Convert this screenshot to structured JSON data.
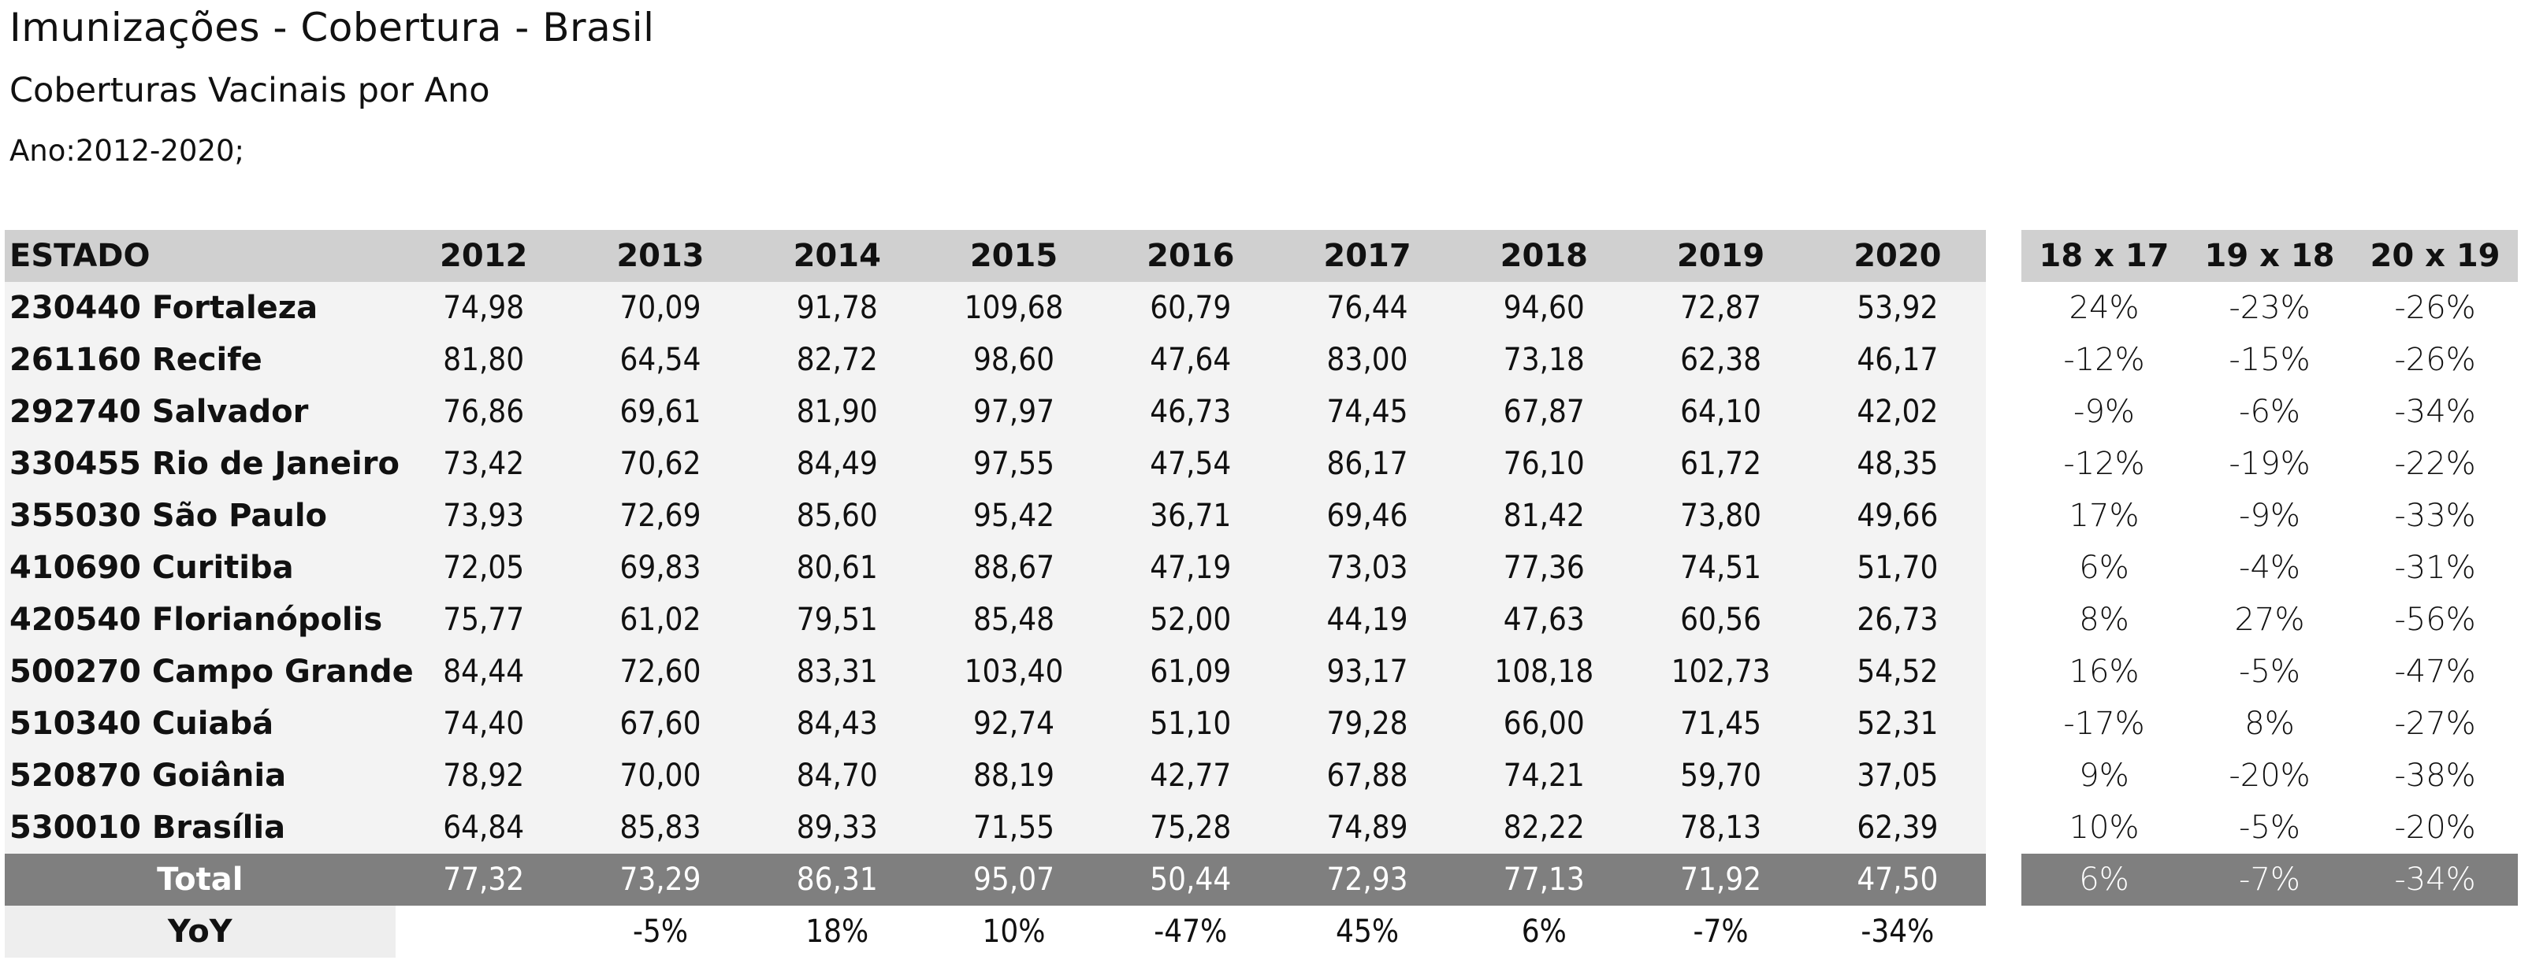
{
  "header": {
    "title": "Imunizações - Cobertura - Brasil",
    "subtitle": "Coberturas Vacinais por Ano",
    "period": "Ano:2012-2020;"
  },
  "main_table": {
    "estado_header": "ESTADO",
    "years": [
      "2012",
      "2013",
      "2014",
      "2015",
      "2016",
      "2017",
      "2018",
      "2019",
      "2020"
    ],
    "rows": [
      {
        "estado": "230440 Fortaleza",
        "values": [
          "74,98",
          "70,09",
          "91,78",
          "109,68",
          "60,79",
          "76,44",
          "94,60",
          "72,87",
          "53,92"
        ]
      },
      {
        "estado": "261160 Recife",
        "values": [
          "81,80",
          "64,54",
          "82,72",
          "98,60",
          "47,64",
          "83,00",
          "73,18",
          "62,38",
          "46,17"
        ]
      },
      {
        "estado": "292740 Salvador",
        "values": [
          "76,86",
          "69,61",
          "81,90",
          "97,97",
          "46,73",
          "74,45",
          "67,87",
          "64,10",
          "42,02"
        ]
      },
      {
        "estado": "330455 Rio de Janeiro",
        "values": [
          "73,42",
          "70,62",
          "84,49",
          "97,55",
          "47,54",
          "86,17",
          "76,10",
          "61,72",
          "48,35"
        ]
      },
      {
        "estado": "355030 São Paulo",
        "values": [
          "73,93",
          "72,69",
          "85,60",
          "95,42",
          "36,71",
          "69,46",
          "81,42",
          "73,80",
          "49,66"
        ]
      },
      {
        "estado": "410690 Curitiba",
        "values": [
          "72,05",
          "69,83",
          "80,61",
          "88,67",
          "47,19",
          "73,03",
          "77,36",
          "74,51",
          "51,70"
        ]
      },
      {
        "estado": "420540 Florianópolis",
        "values": [
          "75,77",
          "61,02",
          "79,51",
          "85,48",
          "52,00",
          "44,19",
          "47,63",
          "60,56",
          "26,73"
        ]
      },
      {
        "estado": "500270 Campo Grande",
        "values": [
          "84,44",
          "72,60",
          "83,31",
          "103,40",
          "61,09",
          "93,17",
          "108,18",
          "102,73",
          "54,52"
        ]
      },
      {
        "estado": "510340 Cuiabá",
        "values": [
          "74,40",
          "67,60",
          "84,43",
          "92,74",
          "51,10",
          "79,28",
          "66,00",
          "71,45",
          "52,31"
        ]
      },
      {
        "estado": "520870 Goiânia",
        "values": [
          "78,92",
          "70,00",
          "84,70",
          "88,19",
          "42,77",
          "67,88",
          "74,21",
          "59,70",
          "37,05"
        ]
      },
      {
        "estado": "530010 Brasília",
        "values": [
          "64,84",
          "85,83",
          "89,33",
          "71,55",
          "75,28",
          "74,89",
          "82,22",
          "78,13",
          "62,39"
        ]
      }
    ],
    "total": {
      "label": "Total",
      "values": [
        "77,32",
        "73,29",
        "86,31",
        "95,07",
        "50,44",
        "72,93",
        "77,13",
        "71,92",
        "47,50"
      ]
    },
    "yoy": {
      "label": "YoY",
      "values": [
        "",
        "-5%",
        "18%",
        "10%",
        "-47%",
        "45%",
        "6%",
        "-7%",
        "-34%"
      ]
    }
  },
  "comparison_table": {
    "headers": [
      "18 x 17",
      "19 x 18",
      "20 x 19"
    ],
    "rows": [
      [
        "24%",
        "-23%",
        "-26%"
      ],
      [
        "-12%",
        "-15%",
        "-26%"
      ],
      [
        "-9%",
        "-6%",
        "-34%"
      ],
      [
        "-12%",
        "-19%",
        "-22%"
      ],
      [
        "17%",
        "-9%",
        "-33%"
      ],
      [
        "6%",
        "-4%",
        "-31%"
      ],
      [
        "8%",
        "27%",
        "-56%"
      ],
      [
        "16%",
        "-5%",
        "-47%"
      ],
      [
        "-17%",
        "8%",
        "-27%"
      ],
      [
        "9%",
        "-20%",
        "-38%"
      ],
      [
        "10%",
        "-5%",
        "-20%"
      ]
    ],
    "total": [
      "6%",
      "-7%",
      "-34%"
    ]
  },
  "colors": {
    "header_bg": "#d0d0d0",
    "row_bg": "#f3f3f3",
    "total_bg": "#7f7f7f",
    "total_text": "#ffffff"
  }
}
